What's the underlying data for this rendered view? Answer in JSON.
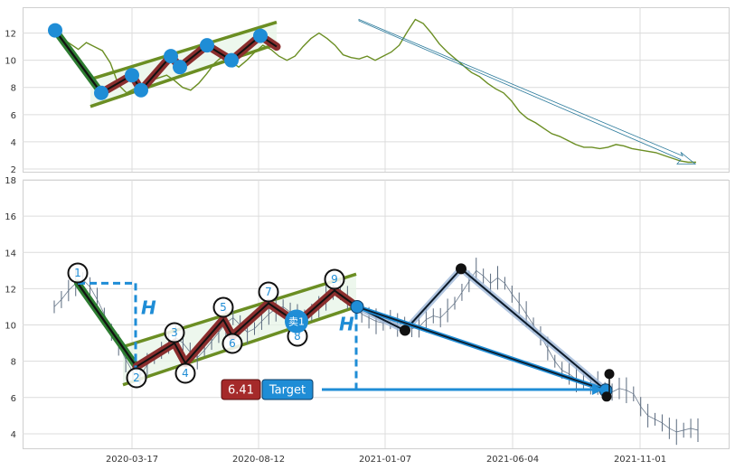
{
  "chart_data": [
    {
      "type": "line",
      "panel": "top",
      "title": "",
      "xlabel": "",
      "ylabel": "",
      "grid": true,
      "ylim": [
        1.8,
        13.9
      ],
      "y_ticks": [
        2,
        4,
        6,
        8,
        10,
        12
      ],
      "colors": {
        "price": "#6b8e23",
        "channel": "#6b8e23",
        "wave": "#8b2e2e",
        "pivot": "#1f8dd6",
        "impulse": "#2e7d32",
        "arrow": "#2b7a9b"
      },
      "series": [
        {
          "values": [
            12.2,
            11.6,
            11.2,
            10.8,
            11.3,
            11.0,
            10.7,
            9.8,
            8.2,
            7.6,
            7.9,
            8.1,
            8.5,
            8.7,
            8.9,
            8.5,
            8.0,
            7.8,
            8.3,
            9.0,
            9.8,
            10.3,
            9.9,
            9.5,
            10.0,
            10.6,
            11.1,
            10.8,
            10.3,
            10.0,
            10.3,
            11.0,
            11.6,
            12.0,
            11.6,
            11.1,
            10.4,
            10.2,
            10.1,
            10.3,
            10.0,
            10.3,
            10.6,
            11.1,
            12.1,
            13.0,
            12.7,
            12.0,
            11.2,
            10.6,
            10.1,
            9.6,
            9.1,
            8.8,
            8.3,
            7.9,
            7.6,
            7.0,
            6.2,
            5.7,
            5.4,
            5.0,
            4.6,
            4.4,
            4.1,
            3.8,
            3.6,
            3.6,
            3.5,
            3.6,
            3.8,
            3.7,
            3.5,
            3.4,
            3.3,
            3.2,
            3.0,
            2.8,
            2.6,
            2.5,
            2.5
          ]
        }
      ],
      "pivots": [
        12.2,
        7.6,
        8.9,
        7.8,
        10.3,
        9.5,
        11.1,
        10.0,
        11.8
      ],
      "channel": {
        "lower": [
          6.6,
          11.2
        ],
        "upper": [
          8.6,
          12.8
        ]
      },
      "trend_arrow": {
        "from": 13.0,
        "to": 2.5
      }
    },
    {
      "type": "line",
      "panel": "bottom",
      "title": "",
      "xlabel": "",
      "ylabel": "",
      "grid": true,
      "ylim": [
        3.2,
        18.0
      ],
      "y_ticks": [
        4,
        6,
        8,
        10,
        12,
        14,
        16,
        18
      ],
      "x_tick_labels": [
        "2020-03-17",
        "2020-08-12",
        "2021-01-07",
        "2021-06-04",
        "2021-11-01"
      ],
      "colors": {
        "price": "#5a6a7e",
        "channel": "#6b8e23",
        "wave": "#8b2e2e",
        "pivot": "#1f8dd6",
        "impulse": "#2e7d32",
        "projection": "#1f8dd6",
        "target_badge": "#a52a2a",
        "dark_line": "#0d1b2a"
      },
      "series": [
        {
          "values": [
            11.0,
            11.4,
            11.9,
            12.3,
            12.5,
            12.1,
            11.4,
            10.6,
            9.6,
            8.9,
            8.1,
            7.4,
            7.2,
            7.8,
            8.2,
            8.6,
            9.0,
            9.3,
            9.0,
            8.5,
            8.2,
            8.6,
            9.1,
            9.6,
            10.1,
            10.4,
            10.0,
            9.6,
            9.8,
            10.2,
            10.6,
            10.9,
            11.0,
            10.7,
            10.5,
            10.5,
            10.7,
            11.0,
            11.5,
            11.8,
            11.9,
            11.5,
            11.0,
            10.6,
            10.4,
            10.2,
            10.1,
            10.3,
            10.0,
            10.1,
            9.8,
            9.9,
            10.3,
            10.5,
            10.4,
            10.8,
            11.2,
            11.8,
            12.4,
            13.0,
            12.7,
            12.3,
            12.6,
            12.3,
            11.7,
            11.2,
            10.6,
            10.0,
            9.4,
            8.7,
            8.0,
            7.5,
            7.3,
            7.0,
            6.9,
            6.7,
            6.8,
            6.5,
            6.3,
            6.5,
            6.4,
            6.2,
            5.5,
            5.0,
            4.8,
            4.6,
            4.3,
            4.1,
            4.2,
            4.3,
            4.2
          ]
        }
      ],
      "wave_labels": [
        "1",
        "2",
        "3",
        "4",
        "5",
        "6",
        "7",
        "8",
        "9"
      ],
      "wave_values": [
        12.3,
        7.7,
        9.0,
        7.9,
        10.3,
        9.4,
        11.2,
        10.1,
        11.9
      ],
      "channel": {
        "lower": [
          6.7,
          11.0
        ],
        "upper": [
          8.8,
          12.8
        ]
      },
      "projection_points": [
        11.0,
        9.7,
        13.1,
        6.4
      ],
      "sell_signal": {
        "label": "卖1",
        "value": 10.1
      },
      "height_marker": "H",
      "target": {
        "value": "6.41",
        "label": "Target"
      }
    }
  ]
}
